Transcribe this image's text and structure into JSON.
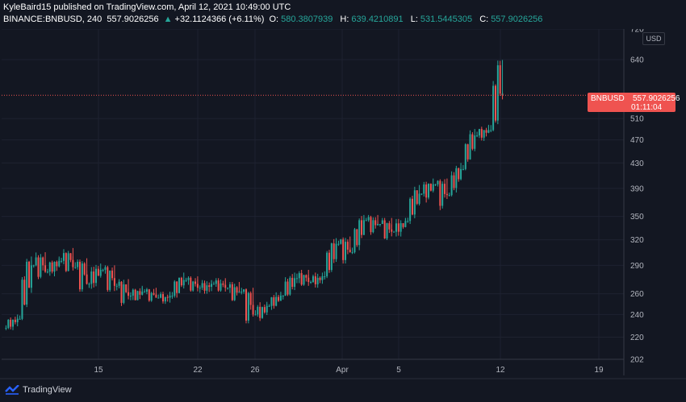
{
  "header": {
    "publisher_line": "KyleBaird15 published on TradingView.com, April 12, 2021 10:49:00 UTC",
    "symbol": "BINANCE:BNBUSD, 240",
    "last": "557.9026256",
    "change_arrow": "▲",
    "change": "+32.1124366 (+6.11%)",
    "o_label": "O:",
    "o_value": "580.3807939",
    "h_label": "H:",
    "h_value": "639.4210891",
    "l_label": "L:",
    "l_value": "531.5445305",
    "c_label": "C:",
    "c_value": "557.9026256"
  },
  "currency_badge": "USD",
  "price_tag": {
    "symbol": "BNBUSD",
    "value": "557.9026256",
    "countdown": "01:11:04"
  },
  "footer": {
    "brand": "TradingView"
  },
  "colors": {
    "background": "#131722",
    "up": "#26a69a",
    "down": "#ef5350",
    "grid": "#1e2230"
  },
  "chart_data": {
    "type": "candlestick",
    "title": "BINANCE:BNBUSD, 240",
    "y_scale": "log",
    "y_ticks": [
      202,
      220,
      240,
      260,
      290,
      320,
      350,
      390,
      430,
      470,
      510,
      640,
      720
    ],
    "x_ticks": [
      "15",
      "22",
      "26",
      "Apr",
      "5",
      "12",
      "19"
    ],
    "last_price": 557.9026256,
    "series": [
      {
        "date": "Mar 8",
        "o": 228,
        "h": 240,
        "l": 226,
        "c": 236
      },
      {
        "date": "Mar 9",
        "o": 236,
        "h": 300,
        "l": 232,
        "c": 290
      },
      {
        "date": "Mar 10",
        "o": 290,
        "h": 305,
        "l": 275,
        "c": 283
      },
      {
        "date": "Mar 11",
        "o": 283,
        "h": 300,
        "l": 278,
        "c": 295
      },
      {
        "date": "Mar 12",
        "o": 295,
        "h": 310,
        "l": 282,
        "c": 288
      },
      {
        "date": "Mar 13",
        "o": 288,
        "h": 298,
        "l": 262,
        "c": 270
      },
      {
        "date": "Mar 14",
        "o": 270,
        "h": 292,
        "l": 265,
        "c": 285
      },
      {
        "date": "Mar 15",
        "o": 285,
        "h": 290,
        "l": 262,
        "c": 268
      },
      {
        "date": "Mar 16",
        "o": 268,
        "h": 275,
        "l": 248,
        "c": 258
      },
      {
        "date": "Mar 17",
        "o": 258,
        "h": 268,
        "l": 250,
        "c": 262
      },
      {
        "date": "Mar 18",
        "o": 262,
        "h": 266,
        "l": 252,
        "c": 256
      },
      {
        "date": "Mar 19",
        "o": 256,
        "h": 262,
        "l": 250,
        "c": 258
      },
      {
        "date": "Mar 20",
        "o": 258,
        "h": 282,
        "l": 255,
        "c": 274
      },
      {
        "date": "Mar 21",
        "o": 274,
        "h": 278,
        "l": 262,
        "c": 266
      },
      {
        "date": "Mar 22",
        "o": 266,
        "h": 274,
        "l": 260,
        "c": 270
      },
      {
        "date": "Mar 23",
        "o": 270,
        "h": 276,
        "l": 262,
        "c": 266
      },
      {
        "date": "Mar 24",
        "o": 266,
        "h": 272,
        "l": 250,
        "c": 262
      },
      {
        "date": "Mar 25",
        "o": 262,
        "h": 266,
        "l": 232,
        "c": 240
      },
      {
        "date": "Mar 26",
        "o": 240,
        "h": 252,
        "l": 232,
        "c": 248
      },
      {
        "date": "Mar 27",
        "o": 248,
        "h": 262,
        "l": 244,
        "c": 258
      },
      {
        "date": "Mar 28",
        "o": 258,
        "h": 282,
        "l": 252,
        "c": 276
      },
      {
        "date": "Mar 29",
        "o": 276,
        "h": 285,
        "l": 268,
        "c": 272
      },
      {
        "date": "Mar 30",
        "o": 272,
        "h": 282,
        "l": 266,
        "c": 278
      },
      {
        "date": "Mar 31",
        "o": 278,
        "h": 322,
        "l": 272,
        "c": 315
      },
      {
        "date": "Apr 1",
        "o": 315,
        "h": 324,
        "l": 292,
        "c": 305
      },
      {
        "date": "Apr 2",
        "o": 305,
        "h": 352,
        "l": 300,
        "c": 345
      },
      {
        "date": "Apr 3",
        "o": 345,
        "h": 352,
        "l": 325,
        "c": 340
      },
      {
        "date": "Apr 4",
        "o": 340,
        "h": 348,
        "l": 318,
        "c": 330
      },
      {
        "date": "Apr 5",
        "o": 330,
        "h": 348,
        "l": 324,
        "c": 344
      },
      {
        "date": "Apr 6",
        "o": 344,
        "h": 395,
        "l": 340,
        "c": 382
      },
      {
        "date": "Apr 7",
        "o": 382,
        "h": 405,
        "l": 368,
        "c": 396
      },
      {
        "date": "Apr 8",
        "o": 396,
        "h": 405,
        "l": 358,
        "c": 380
      },
      {
        "date": "Apr 9",
        "o": 380,
        "h": 430,
        "l": 378,
        "c": 420
      },
      {
        "date": "Apr 10",
        "o": 420,
        "h": 490,
        "l": 418,
        "c": 478
      },
      {
        "date": "Apr 11",
        "o": 478,
        "h": 498,
        "l": 468,
        "c": 488
      },
      {
        "date": "Apr 12",
        "o": 488,
        "h": 639,
        "l": 484,
        "c": 558
      }
    ]
  }
}
